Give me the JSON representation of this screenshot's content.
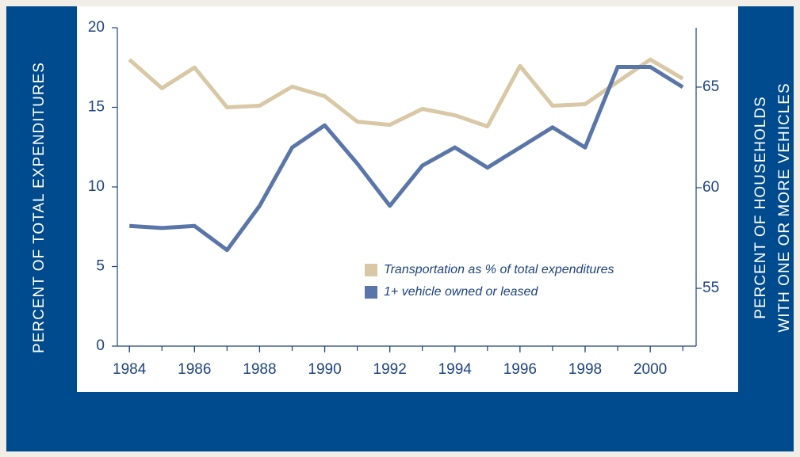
{
  "chart_data": {
    "type": "line",
    "x": [
      1984,
      1985,
      1986,
      1987,
      1988,
      1989,
      1990,
      1991,
      1992,
      1993,
      1994,
      1995,
      1996,
      1997,
      1998,
      1999,
      2000,
      2001
    ],
    "series": [
      {
        "name": "Transportation as % of total expenditures",
        "color": "#d9c8a6",
        "values": [
          18.0,
          16.2,
          17.5,
          15.0,
          15.1,
          16.3,
          15.7,
          14.1,
          13.9,
          14.9,
          14.5,
          13.8,
          17.6,
          15.1,
          15.2,
          16.6,
          18.0,
          16.8
        ]
      },
      {
        "name": "1+ vehicle owned or leased",
        "color": "#5a76a8",
        "axis": "y2",
        "values": [
          58.1,
          58.0,
          58.1,
          56.9,
          59.1,
          62.0,
          63.1,
          61.2,
          59.1,
          61.1,
          62.0,
          61.0,
          62.0,
          63.0,
          62.0,
          66.0,
          66.0,
          65.0
        ]
      }
    ],
    "ylabel": "PERCENT OF TOTAL EXPENDITURES",
    "y2label": [
      "PERCENT OF HOUSEHOLDS",
      "WITH ONE OR MORE VEHICLES"
    ],
    "xlim": [
      1983.63,
      2001.41
    ],
    "xticks": [
      1984,
      1986,
      1988,
      1990,
      1992,
      1994,
      1996,
      1998,
      2000
    ],
    "ylim": [
      0,
      20
    ],
    "yticks": [
      0,
      5,
      10,
      15,
      20
    ],
    "y2lim": [
      52.13,
      67.95
    ],
    "y2ticks": [
      55,
      60,
      65
    ]
  }
}
